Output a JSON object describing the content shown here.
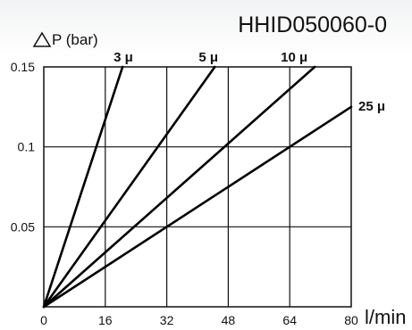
{
  "chart_data": {
    "type": "line",
    "title": "HHID050060-0",
    "ylabel": "△P (bar)",
    "xlabel": "l/min",
    "xlim": [
      0,
      80
    ],
    "ylim": [
      0,
      0.15
    ],
    "x_ticks": [
      0,
      16,
      32,
      48,
      64,
      80
    ],
    "y_ticks": [
      0.05,
      0.1,
      0.15
    ],
    "x_tick_labels": [
      "0",
      "16",
      "32",
      "48",
      "64",
      "80"
    ],
    "y_tick_labels": [
      "0.05",
      "0.1",
      "0.15"
    ],
    "grid": true,
    "series": [
      {
        "name": "3 μ",
        "points": [
          [
            0,
            0
          ],
          [
            20.5,
            0.15
          ]
        ]
      },
      {
        "name": "5 μ",
        "points": [
          [
            0,
            0
          ],
          [
            44.5,
            0.15
          ]
        ]
      },
      {
        "name": "10 μ",
        "points": [
          [
            0,
            0
          ],
          [
            70.5,
            0.15
          ]
        ]
      },
      {
        "name": "25 μ",
        "points": [
          [
            0,
            0
          ],
          [
            80,
            0.125
          ]
        ]
      }
    ]
  }
}
